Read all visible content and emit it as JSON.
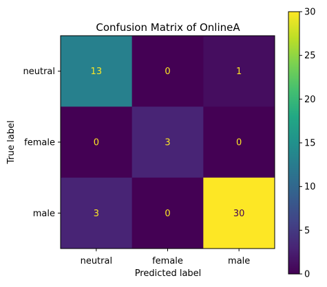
{
  "chart_data": {
    "type": "heatmap",
    "title": "Confusion Matrix of OnlineA",
    "xlabel": "Predicted label",
    "ylabel": "True label",
    "x_categories": [
      "neutral",
      "female",
      "male"
    ],
    "y_categories": [
      "neutral",
      "female",
      "male"
    ],
    "values": [
      [
        13,
        0,
        1
      ],
      [
        0,
        3,
        0
      ],
      [
        3,
        0,
        30
      ]
    ],
    "colorbar": {
      "min": 0,
      "max": 30,
      "ticks": [
        0,
        5,
        10,
        15,
        20,
        25,
        30
      ]
    },
    "colormap": "viridis",
    "text_color_dark_cells": "#fde725",
    "text_color_light_cells": "#440154"
  }
}
